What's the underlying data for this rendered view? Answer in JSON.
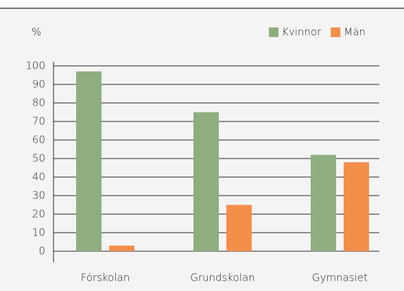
{
  "chart_data": {
    "type": "bar",
    "y_label": "%",
    "categories": [
      "Förskolan",
      "Grundskolan",
      "Gymnasiet"
    ],
    "series": [
      {
        "name": "Kvinnor",
        "color": "#8fae80",
        "values": [
          97,
          75,
          52
        ]
      },
      {
        "name": "Män",
        "color": "#f48e4b",
        "values": [
          3,
          25,
          48
        ]
      }
    ],
    "ylim": [
      0,
      100
    ],
    "yticks": [
      0,
      10,
      20,
      30,
      40,
      50,
      60,
      70,
      80,
      90,
      100
    ],
    "grid": true,
    "legend": "top-right"
  }
}
